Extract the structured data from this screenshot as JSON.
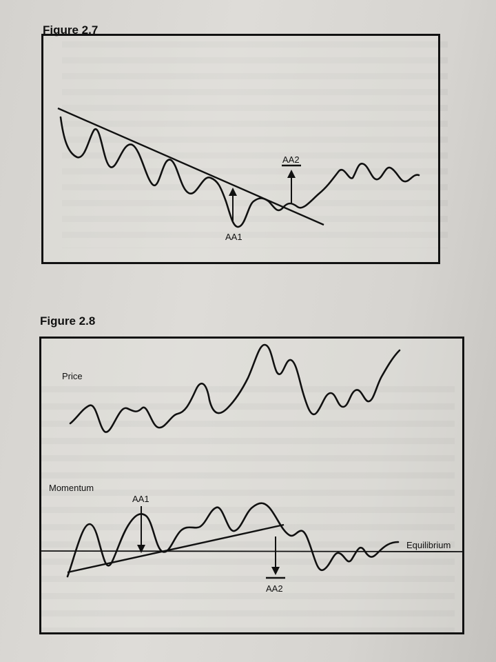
{
  "figure_a": {
    "label": "Figure 2.7",
    "annotations": {
      "aa1": "AA1",
      "aa2": "AA2"
    }
  },
  "figure_b": {
    "label": "Figure 2.8",
    "annotations": {
      "price": "Price",
      "momentum": "Momentum",
      "aa1": "AA1",
      "aa2": "AA2",
      "equilibrium": "Equilibrium"
    }
  }
}
